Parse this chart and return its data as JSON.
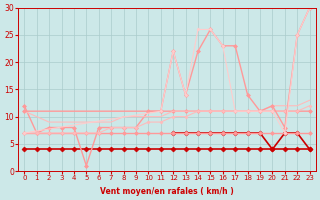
{
  "background_color": "#cce8e8",
  "grid_color": "#aacccc",
  "line_color_dark": "#cc0000",
  "xlabel": "Vent moyen/en rafales ( km/h )",
  "xlim": [
    -0.5,
    23.5
  ],
  "ylim": [
    0,
    30
  ],
  "yticks": [
    0,
    5,
    10,
    15,
    20,
    25,
    30
  ],
  "xticks": [
    0,
    1,
    2,
    3,
    4,
    5,
    6,
    7,
    8,
    9,
    10,
    11,
    12,
    13,
    14,
    15,
    16,
    17,
    18,
    19,
    20,
    21,
    22,
    23
  ],
  "series": [
    {
      "x": [
        0,
        1,
        2,
        3,
        4,
        5,
        6,
        7,
        8,
        9,
        10,
        11,
        12,
        13,
        14,
        15,
        16,
        17,
        18,
        19,
        20,
        21,
        22,
        23
      ],
      "y": [
        4,
        4,
        4,
        4,
        4,
        4,
        4,
        4,
        4,
        4,
        4,
        4,
        4,
        4,
        4,
        4,
        4,
        4,
        4,
        4,
        4,
        4,
        4,
        4
      ],
      "color": "#cc0000",
      "lw": 1.2,
      "marker": "D",
      "ms": 2.5
    },
    {
      "x": [
        12,
        13,
        14,
        15,
        16,
        17,
        18,
        19,
        20,
        21,
        22,
        23
      ],
      "y": [
        7,
        7,
        7,
        7,
        7,
        7,
        7,
        7,
        4,
        7,
        7,
        4
      ],
      "color": "#cc0000",
      "lw": 1.2,
      "marker": "D",
      "ms": 2.5
    },
    {
      "x": [
        0,
        1,
        2,
        3,
        4,
        5,
        6,
        7,
        8,
        9,
        10,
        11,
        12,
        13,
        14,
        15,
        16,
        17,
        18,
        19,
        20,
        21,
        22,
        23
      ],
      "y": [
        7,
        7,
        7,
        7,
        7,
        7,
        7,
        7,
        7,
        7,
        7,
        7,
        7,
        7,
        7,
        7,
        7,
        7,
        7,
        7,
        7,
        7,
        7,
        7
      ],
      "color": "#ff9999",
      "lw": 1.0,
      "marker": "D",
      "ms": 2.0
    },
    {
      "x": [
        0,
        1,
        2,
        3,
        4,
        5,
        6,
        7,
        8,
        9,
        10,
        11,
        12,
        13,
        14,
        15,
        16,
        17,
        18,
        19,
        20,
        21,
        22,
        23
      ],
      "y": [
        12,
        7,
        8,
        8,
        8,
        1,
        8,
        8,
        8,
        8,
        11,
        11,
        11,
        11,
        11,
        11,
        11,
        11,
        11,
        11,
        11,
        11,
        11,
        11
      ],
      "color": "#ff9999",
      "lw": 1.0,
      "marker": "D",
      "ms": 2.0
    },
    {
      "x": [
        0,
        1,
        2,
        3,
        4,
        5,
        6,
        7,
        8,
        9,
        10,
        11,
        12,
        13,
        14,
        15,
        16,
        17,
        18,
        19,
        20,
        21,
        22,
        23
      ],
      "y": [
        7,
        7,
        7,
        7,
        7,
        7,
        7,
        8,
        8,
        8,
        9,
        9,
        10,
        10,
        11,
        11,
        11,
        11,
        11,
        11,
        11,
        11,
        11,
        12
      ],
      "color": "#ffbbbb",
      "lw": 0.8,
      "marker": "D",
      "ms": 1.5
    },
    {
      "x": [
        0,
        1,
        2,
        3,
        4,
        5,
        6,
        7,
        8,
        9,
        10,
        11,
        12,
        13,
        14,
        15,
        16,
        17,
        18,
        19,
        20,
        21,
        22,
        23
      ],
      "y": [
        11,
        10,
        9,
        9,
        9,
        9,
        9,
        9,
        10,
        10,
        10,
        10,
        11,
        11,
        11,
        11,
        11,
        11,
        11,
        11,
        12,
        12,
        12,
        13
      ],
      "color": "#ffbbbb",
      "lw": 0.8,
      "marker": null,
      "ms": 0
    },
    {
      "x": [
        0,
        11,
        12,
        13,
        14,
        15,
        16,
        17,
        18,
        19,
        20,
        21,
        22,
        23
      ],
      "y": [
        11,
        11,
        22,
        14,
        22,
        26,
        23,
        23,
        14,
        11,
        12,
        8,
        25,
        30
      ],
      "color": "#ff9999",
      "lw": 1.0,
      "marker": "D",
      "ms": 2.0
    },
    {
      "x": [
        0,
        11,
        12,
        13,
        14,
        15,
        16,
        17,
        18,
        19,
        20,
        21,
        22,
        23
      ],
      "y": [
        7,
        11,
        22,
        14,
        26,
        26,
        23,
        11,
        11,
        11,
        11,
        7,
        25,
        30
      ],
      "color": "#ffcccc",
      "lw": 0.8,
      "marker": "D",
      "ms": 1.5
    }
  ]
}
